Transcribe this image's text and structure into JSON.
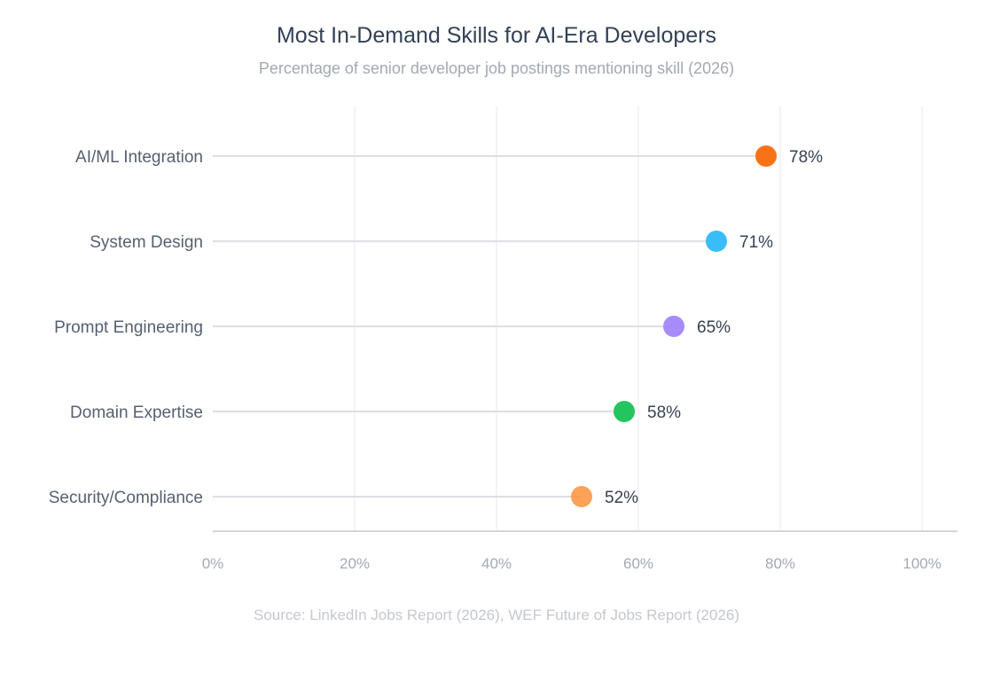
{
  "chart_data": {
    "type": "lollipop",
    "title": "Most In-Demand Skills for AI-Era Developers",
    "subtitle": "Percentage of senior developer job postings mentioning skill (2026)",
    "categories": [
      "AI/ML Integration",
      "System Design",
      "Prompt Engineering",
      "Domain Expertise",
      "Security/Compliance"
    ],
    "values": [
      78,
      71,
      65,
      58,
      52
    ],
    "value_labels": [
      "78%",
      "71%",
      "65%",
      "58%",
      "52%"
    ],
    "colors": [
      "#f97316",
      "#38bdf8",
      "#a78bfa",
      "#22c55e",
      "#fb923c"
    ],
    "xlim": [
      0,
      105
    ],
    "x_ticks": [
      0,
      20,
      40,
      60,
      80,
      100
    ],
    "x_tick_labels": [
      "0%",
      "20%",
      "40%",
      "60%",
      "80%",
      "100%"
    ],
    "xlabel": "",
    "ylabel": "",
    "grid": "vertical",
    "legend": "none",
    "source": "Source: LinkedIn Jobs Report (2026), WEF Future of Jobs Report (2026)"
  }
}
